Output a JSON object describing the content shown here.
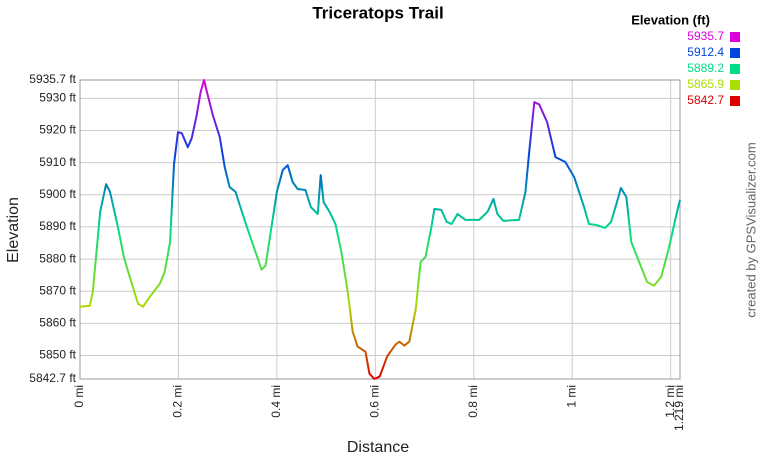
{
  "chart_data": {
    "type": "line",
    "title": "Triceratops Trail",
    "x_label": "Distance",
    "y_label": "Elevation",
    "credit": "created by GPSVisualizer.com",
    "xlim": [
      0,
      1.219
    ],
    "ylim": [
      5842.7,
      5935.7
    ],
    "xticks": [
      {
        "value": 0,
        "label": "0 mi"
      },
      {
        "value": 0.2,
        "label": "0.2 mi"
      },
      {
        "value": 0.4,
        "label": "0.4 mi"
      },
      {
        "value": 0.6,
        "label": "0.6 mi"
      },
      {
        "value": 0.8,
        "label": "0.8 mi"
      },
      {
        "value": 1,
        "label": "1 mi"
      },
      {
        "value": 1.2,
        "label": "1.2 mi"
      },
      {
        "value": 1.219,
        "label": "1.219 mi"
      }
    ],
    "yticks": [
      {
        "value": 5842.7,
        "label": "5842.7 ft"
      },
      {
        "value": 5850,
        "label": "5850 ft"
      },
      {
        "value": 5860,
        "label": "5860 ft"
      },
      {
        "value": 5870,
        "label": "5870 ft"
      },
      {
        "value": 5880,
        "label": "5880 ft"
      },
      {
        "value": 5890,
        "label": "5890 ft"
      },
      {
        "value": 5900,
        "label": "5900 ft"
      },
      {
        "value": 5910,
        "label": "5910 ft"
      },
      {
        "value": 5920,
        "label": "5920 ft"
      },
      {
        "value": 5930,
        "label": "5930 ft"
      },
      {
        "value": 5935.7,
        "label": "5935.7 ft"
      }
    ],
    "grid": true,
    "legend": {
      "title": "Elevation (ft)",
      "items": [
        {
          "value": 5935.7,
          "color": "#dd00dd"
        },
        {
          "value": 5912.4,
          "color": "#0044dd"
        },
        {
          "value": 5889.2,
          "color": "#00dd88"
        },
        {
          "value": 5865.9,
          "color": "#aadd00"
        },
        {
          "value": 5842.7,
          "color": "#dd0000"
        }
      ]
    },
    "x": [
      0,
      0.02,
      0.026,
      0.041,
      0.053,
      0.061,
      0.077,
      0.089,
      0.101,
      0.118,
      0.128,
      0.142,
      0.162,
      0.172,
      0.183,
      0.191,
      0.199,
      0.207,
      0.219,
      0.227,
      0.237,
      0.245,
      0.252,
      0.258,
      0.27,
      0.284,
      0.294,
      0.304,
      0.316,
      0.329,
      0.341,
      0.355,
      0.369,
      0.377,
      0.389,
      0.4,
      0.412,
      0.422,
      0.432,
      0.442,
      0.458,
      0.469,
      0.483,
      0.489,
      0.495,
      0.507,
      0.519,
      0.531,
      0.544,
      0.554,
      0.564,
      0.58,
      0.588,
      0.598,
      0.609,
      0.624,
      0.641,
      0.649,
      0.659,
      0.669,
      0.682,
      0.692,
      0.702,
      0.714,
      0.72,
      0.734,
      0.745,
      0.755,
      0.767,
      0.783,
      0.811,
      0.828,
      0.84,
      0.848,
      0.86,
      0.892,
      0.905,
      0.913,
      0.923,
      0.933,
      0.949,
      0.966,
      0.986,
      1.004,
      1.024,
      1.034,
      1.049,
      1.067,
      1.079,
      1.091,
      1.099,
      1.11,
      1.12,
      1.136,
      1.152,
      1.166,
      1.181,
      1.197,
      1.213,
      1.219
    ],
    "values": [
      5865.2,
      5865.5,
      5869.8,
      5894.7,
      5903.3,
      5900.9,
      5890,
      5880.7,
      5874.5,
      5866.1,
      5865.2,
      5868.3,
      5872.3,
      5876,
      5885.3,
      5909.5,
      5919.5,
      5919.1,
      5914.8,
      5917.6,
      5924.7,
      5931.9,
      5935.7,
      5931.9,
      5924.7,
      5917.9,
      5908.6,
      5902.4,
      5900.9,
      5894.7,
      5889.1,
      5882.9,
      5876.7,
      5878,
      5890,
      5900.9,
      5907.7,
      5909.2,
      5904,
      5901.8,
      5901.5,
      5896.2,
      5894,
      5906.1,
      5897.7,
      5894.7,
      5890.9,
      5882.2,
      5869.8,
      5857.4,
      5852.8,
      5851.2,
      5844.4,
      5842.7,
      5843.5,
      5849.7,
      5853.4,
      5854.3,
      5853.1,
      5854.3,
      5864.3,
      5879.1,
      5880.7,
      5890,
      5895.6,
      5895.3,
      5891.6,
      5890.9,
      5894,
      5892.2,
      5892.2,
      5894.7,
      5898.7,
      5894,
      5891.9,
      5892.2,
      5900.9,
      5913.9,
      5928.8,
      5928.1,
      5922.6,
      5911.7,
      5910.2,
      5905.5,
      5896.2,
      5890.9,
      5890.6,
      5889.7,
      5891.6,
      5897.8,
      5902.1,
      5899.3,
      5885.3,
      5879.1,
      5872.9,
      5871.7,
      5874.5,
      5883.8,
      5894.7,
      5898.4
    ]
  }
}
